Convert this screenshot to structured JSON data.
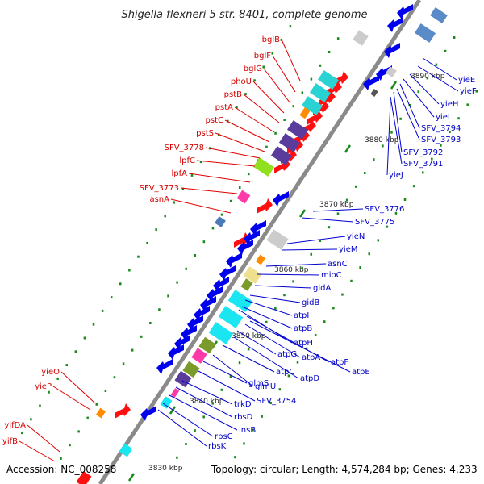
{
  "title": "Shigella flexneri 5 str. 8401, complete genome",
  "footer": {
    "accession": "Accession: NC_008258",
    "topology": "Topology: circular; Length: 4,574,284 bp; Genes: 4,233"
  },
  "colors": {
    "backbone": "#888888",
    "label_red": "#d40000",
    "label_blue": "#0000c8",
    "gene_blue": "#0000ee",
    "gene_red": "#ff0000",
    "tick_green": "#1a8a1a"
  },
  "kbp_ticks": [
    "3830 kbp",
    "3840 kbp",
    "3850 kbp",
    "3860 kbp",
    "3870 kbp",
    "3880 kbp",
    "3890 kbp"
  ],
  "labels_red": [
    "bglB",
    "bglF",
    "bglG",
    "phoU",
    "pstB",
    "pstA",
    "pstC",
    "pstS",
    "SFV_3778",
    "lpfC",
    "lpfA",
    "SFV_3773",
    "asnA",
    "yieO",
    "yieP",
    "yifDA",
    "yifB"
  ],
  "labels_blue": [
    "yieE",
    "yieF",
    "yieH",
    "yieI",
    "SFV_3794",
    "SFV_3793",
    "SFV_3792",
    "SFV_3791",
    "yieJ",
    "SFV_3776",
    "SFV_3775",
    "yieN",
    "yieM",
    "asnC",
    "mioC",
    "gidA",
    "gidB",
    "atpI",
    "atpB",
    "atpH",
    "atpF",
    "atpE",
    "atpA",
    "atpG",
    "atpD",
    "atpC",
    "glmU",
    "glmS",
    "SFV_3754",
    "trkD",
    "rbsD",
    "insB",
    "rbsC",
    "rbsK"
  ]
}
